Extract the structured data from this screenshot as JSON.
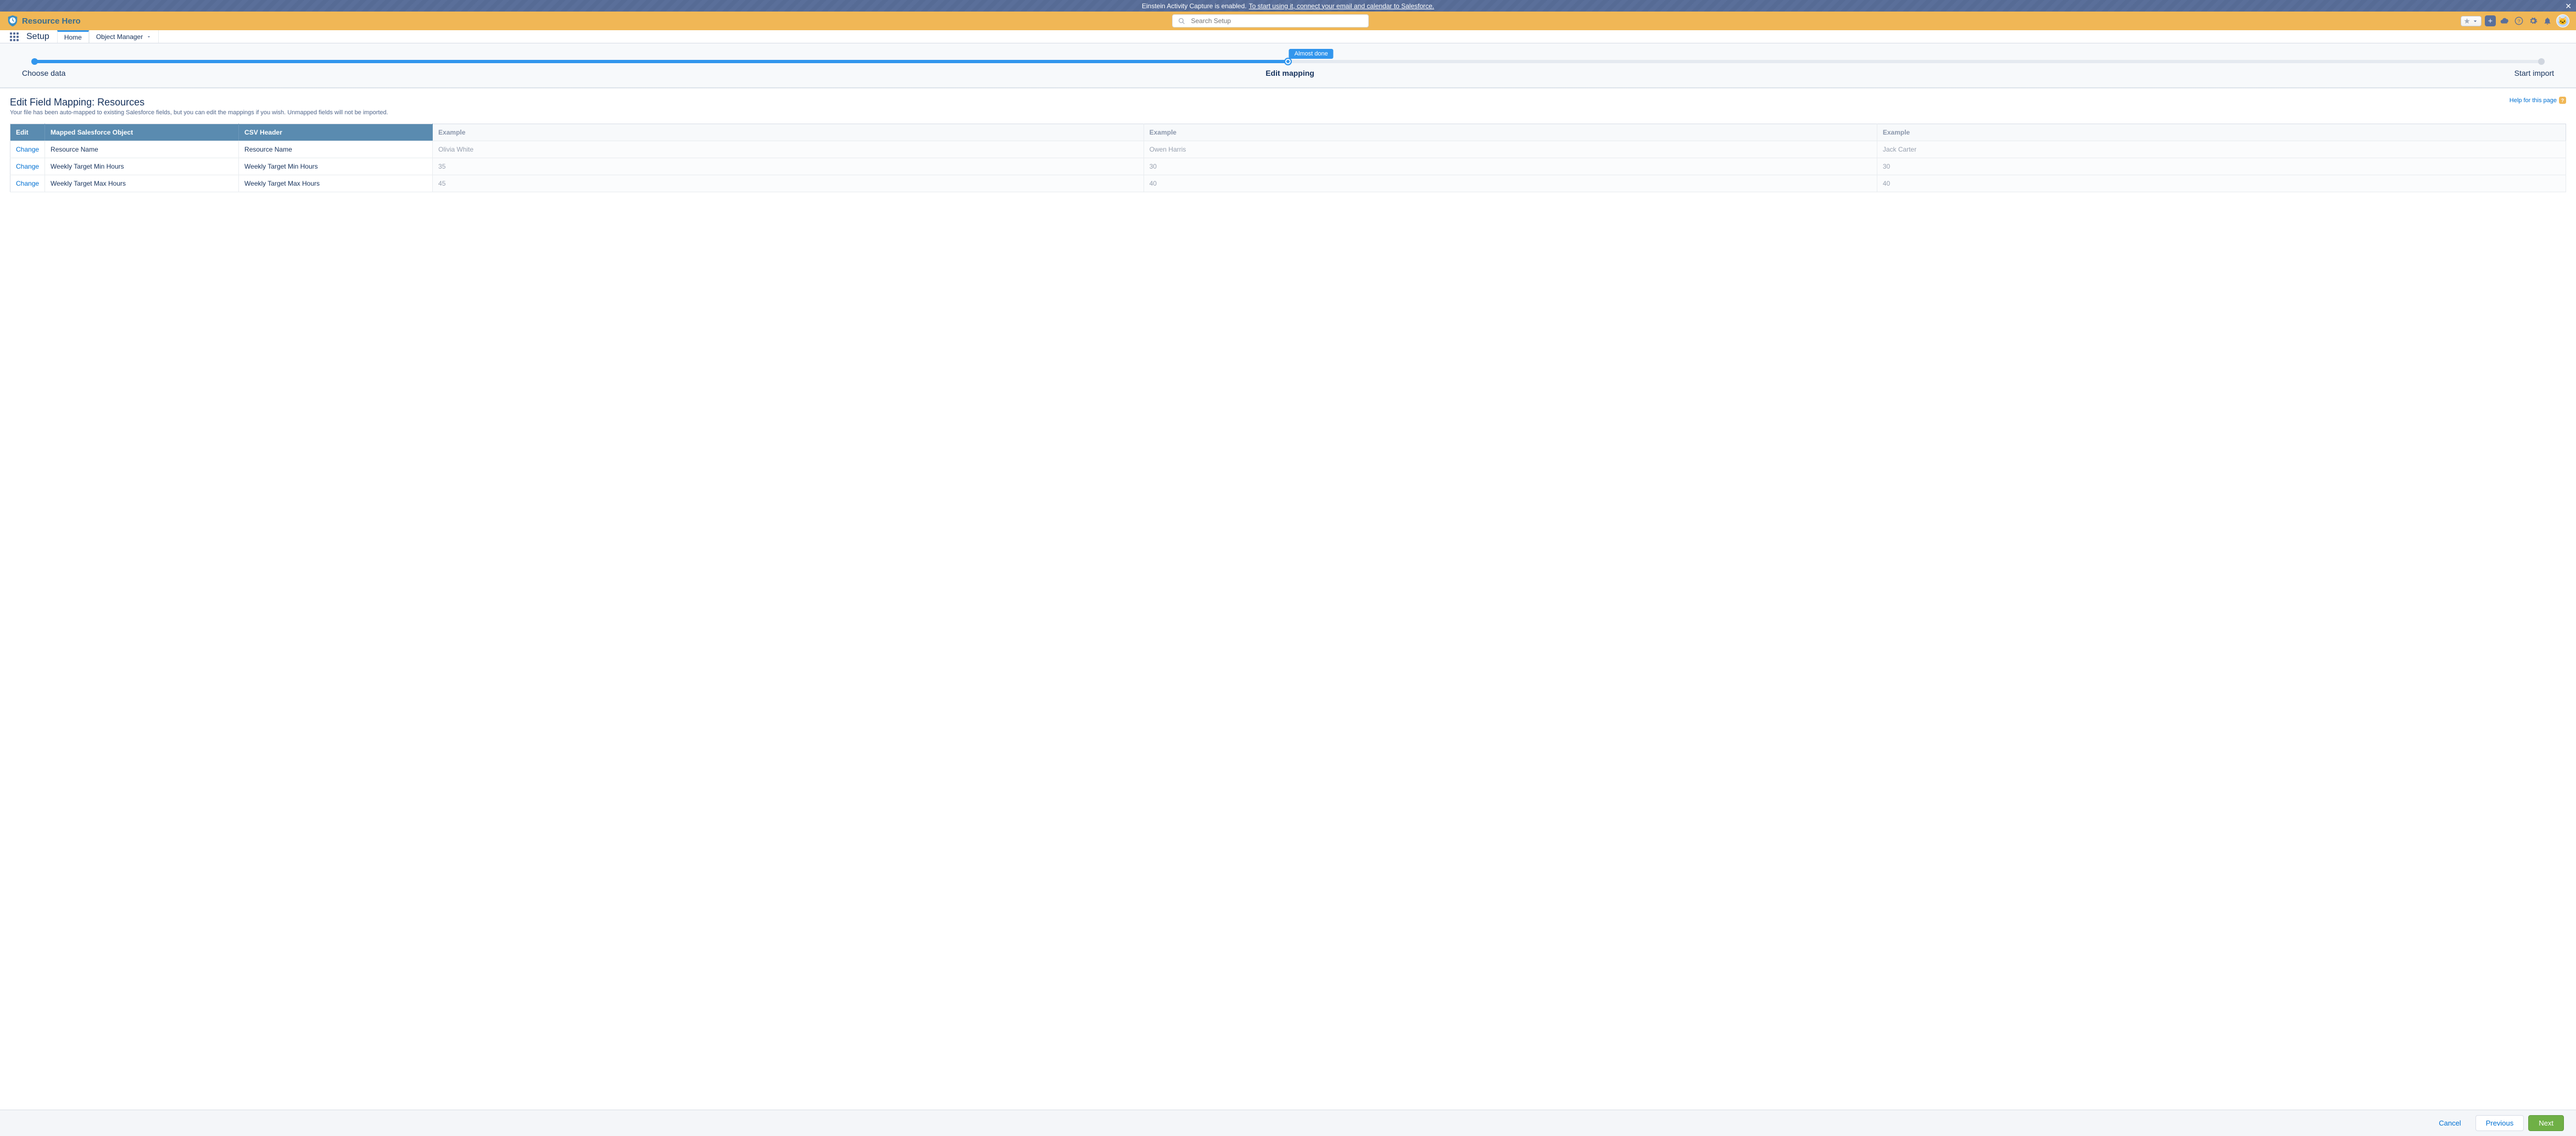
{
  "banner": {
    "text": "Einstein Activity Capture is enabled.",
    "link": "To start using it, connect your email and calendar to Salesforce."
  },
  "header": {
    "app_name": "Resource Hero",
    "search_placeholder": "Search Setup"
  },
  "nav": {
    "title": "Setup",
    "tab_home": "Home",
    "tab_object_manager": "Object Manager"
  },
  "progress": {
    "badge": "Almost done",
    "step1": "Choose data",
    "step2": "Edit mapping",
    "step3": "Start import",
    "fill_percent": 50
  },
  "page": {
    "title": "Edit Field Mapping: Resources",
    "subtitle": "Your file has been auto-mapped to existing Salesforce fields, but you can edit the mappings if you wish. Unmapped fields will not be imported.",
    "help_text": "Help for this page"
  },
  "table": {
    "head_edit": "Edit",
    "head_mapped": "Mapped Salesforce Object",
    "head_csv": "CSV Header",
    "head_ex1": "Example",
    "head_ex2": "Example",
    "head_ex3": "Example",
    "change_label": "Change",
    "rows": [
      {
        "mapped": "Resource Name",
        "csv": "Resource Name",
        "ex1": "Olivia White",
        "ex2": "Owen Harris",
        "ex3": "Jack Carter"
      },
      {
        "mapped": "Weekly Target Min Hours",
        "csv": "Weekly Target Min Hours",
        "ex1": "35",
        "ex2": "30",
        "ex3": "30"
      },
      {
        "mapped": "Weekly Target Max Hours",
        "csv": "Weekly Target Max Hours",
        "ex1": "45",
        "ex2": "40",
        "ex3": "40"
      }
    ]
  },
  "footer": {
    "cancel": "Cancel",
    "previous": "Previous",
    "next": "Next"
  },
  "colors": {
    "accent": "#3296ed",
    "header_bg": "#f0b756",
    "table_header": "#5a8bb0",
    "brand_button": "#6fb046"
  }
}
